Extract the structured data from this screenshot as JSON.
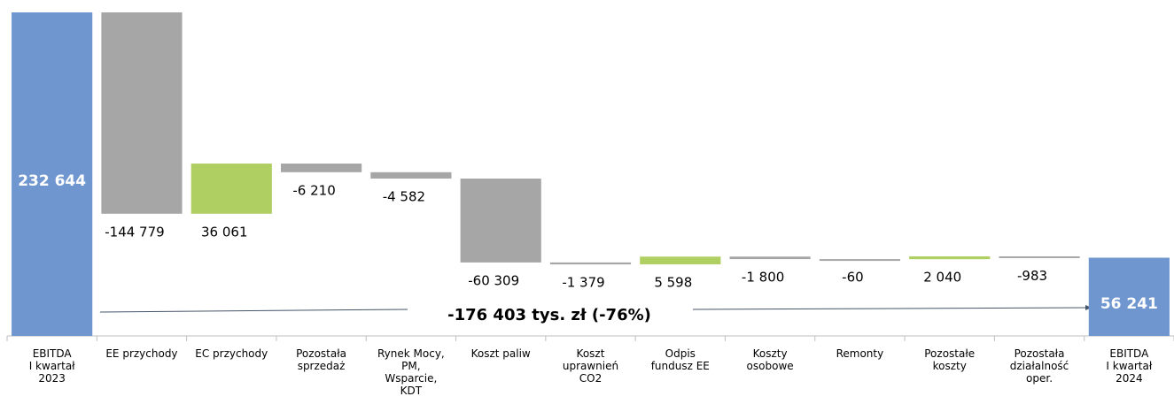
{
  "chart_data": {
    "type": "waterfall",
    "categories": [
      "EBITDA\nI kwartał\n2023",
      "EE przychody",
      "EC przychody",
      "Pozostała\nsprzedaż",
      "Rynek Mocy,\nPM,\nWsparcie,\nKDT",
      "Koszt paliw",
      "Koszt\nuprawnień\nCO2",
      "Odpis\nfundusz EE",
      "Koszty\nosobowe",
      "Remonty",
      "Pozostałe\nkoszty",
      "Pozostała\ndziałalność\noper.",
      "EBITDA\nI kwartał\n2024"
    ],
    "values": [
      232644,
      -144779,
      36061,
      -6210,
      -4582,
      -60309,
      -1379,
      5598,
      -1800,
      -60,
      2040,
      -983,
      56241
    ],
    "value_labels": [
      "232 644",
      "-144 779",
      "36 061",
      "-6 210",
      "-4 582",
      "-60 309",
      "-1 379",
      "5 598",
      "-1 800",
      "-60",
      "2 040",
      "-983",
      "56 241"
    ],
    "measure": [
      "total",
      "relative",
      "relative",
      "relative",
      "relative",
      "relative",
      "relative",
      "relative",
      "relative",
      "relative",
      "relative",
      "relative",
      "total"
    ],
    "colors": {
      "total": "#7096d0",
      "increase": "#b0cf63",
      "decrease": "#a6a6a6"
    },
    "ylim": [
      0,
      232644
    ],
    "annotation": "-176 403 tys. zł (-76%)"
  }
}
